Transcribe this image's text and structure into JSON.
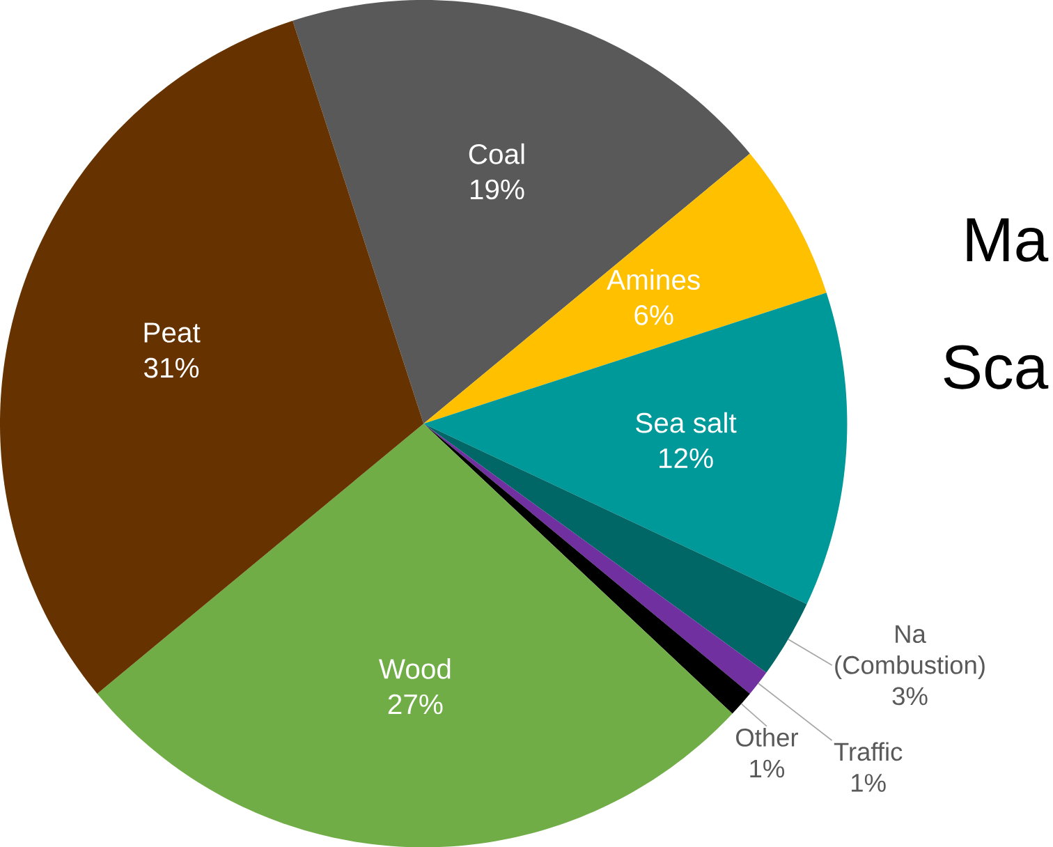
{
  "chart_data": {
    "type": "pie",
    "categories": [
      "Coal",
      "Amines",
      "Sea salt",
      "Na (Combustion)",
      "Traffic",
      "Other",
      "Wood",
      "Peat"
    ],
    "values": [
      19,
      6,
      12,
      3,
      1,
      1,
      27,
      31
    ],
    "value_labels": [
      "19%",
      "6%",
      "12%",
      "3%",
      "1%",
      "1%",
      "27%",
      "31%"
    ],
    "colors": [
      "#595959",
      "#ffc000",
      "#009999",
      "#006666",
      "#7030a0",
      "#000000",
      "#70ad47",
      "#663300"
    ],
    "annotations": [
      "Ma",
      "Sca"
    ]
  }
}
